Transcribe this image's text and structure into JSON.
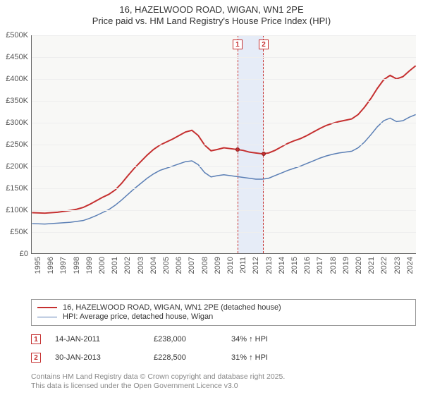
{
  "title": {
    "line1": "16, HAZELWOOD ROAD, WIGAN, WN1 2PE",
    "line2": "Price paid vs. HM Land Registry's House Price Index (HPI)"
  },
  "chart": {
    "type": "line",
    "background_color": "#f8f8f6",
    "ylim": [
      0,
      500000
    ],
    "ytick_step": 50000,
    "ytick_labels": [
      "£0",
      "£50K",
      "£100K",
      "£150K",
      "£200K",
      "£250K",
      "£300K",
      "£350K",
      "£400K",
      "£450K",
      "£500K"
    ],
    "x_start_year": 1995,
    "x_end_year": 2025,
    "xtick_labels": [
      "1995",
      "1996",
      "1997",
      "1998",
      "1999",
      "2000",
      "2001",
      "2002",
      "2003",
      "2004",
      "2005",
      "2006",
      "2007",
      "2008",
      "2009",
      "2010",
      "2011",
      "2012",
      "2013",
      "2014",
      "2015",
      "2016",
      "2017",
      "2018",
      "2019",
      "2020",
      "2021",
      "2022",
      "2023",
      "2024"
    ],
    "highlight_band": {
      "from_year": 2011.04,
      "to_year": 2013.08
    },
    "sale_markers": [
      {
        "label": "1",
        "year": 2011.04,
        "value": 238000
      },
      {
        "label": "2",
        "year": 2013.08,
        "value": 228500
      }
    ],
    "series": [
      {
        "name": "price_paid",
        "color": "#c53030",
        "width": 2,
        "points": [
          [
            1995.0,
            93000
          ],
          [
            1996.0,
            92000
          ],
          [
            1997.0,
            94000
          ],
          [
            1998.0,
            98000
          ],
          [
            1998.5,
            101000
          ],
          [
            1999.0,
            105000
          ],
          [
            1999.5,
            112000
          ],
          [
            2000.0,
            120000
          ],
          [
            2000.5,
            128000
          ],
          [
            2001.0,
            135000
          ],
          [
            2001.5,
            145000
          ],
          [
            2002.0,
            160000
          ],
          [
            2002.5,
            178000
          ],
          [
            2003.0,
            195000
          ],
          [
            2003.5,
            210000
          ],
          [
            2004.0,
            225000
          ],
          [
            2004.5,
            238000
          ],
          [
            2005.0,
            248000
          ],
          [
            2005.5,
            255000
          ],
          [
            2006.0,
            262000
          ],
          [
            2006.5,
            270000
          ],
          [
            2007.0,
            278000
          ],
          [
            2007.5,
            282000
          ],
          [
            2008.0,
            270000
          ],
          [
            2008.5,
            248000
          ],
          [
            2009.0,
            235000
          ],
          [
            2009.5,
            238000
          ],
          [
            2010.0,
            242000
          ],
          [
            2010.5,
            240000
          ],
          [
            2011.0,
            238000
          ],
          [
            2011.5,
            236000
          ],
          [
            2012.0,
            232000
          ],
          [
            2012.5,
            230000
          ],
          [
            2013.0,
            228000
          ],
          [
            2013.5,
            230000
          ],
          [
            2014.0,
            236000
          ],
          [
            2014.5,
            244000
          ],
          [
            2015.0,
            252000
          ],
          [
            2015.5,
            258000
          ],
          [
            2016.0,
            263000
          ],
          [
            2016.5,
            270000
          ],
          [
            2017.0,
            278000
          ],
          [
            2017.5,
            286000
          ],
          [
            2018.0,
            293000
          ],
          [
            2018.5,
            298000
          ],
          [
            2019.0,
            302000
          ],
          [
            2019.5,
            305000
          ],
          [
            2020.0,
            308000
          ],
          [
            2020.5,
            318000
          ],
          [
            2021.0,
            335000
          ],
          [
            2021.5,
            355000
          ],
          [
            2022.0,
            378000
          ],
          [
            2022.5,
            398000
          ],
          [
            2023.0,
            408000
          ],
          [
            2023.5,
            400000
          ],
          [
            2024.0,
            405000
          ],
          [
            2024.5,
            418000
          ],
          [
            2025.0,
            430000
          ]
        ]
      },
      {
        "name": "hpi",
        "color": "#5b7fb5",
        "width": 1.5,
        "points": [
          [
            1995.0,
            68000
          ],
          [
            1996.0,
            67000
          ],
          [
            1997.0,
            69000
          ],
          [
            1998.0,
            71000
          ],
          [
            1999.0,
            75000
          ],
          [
            1999.5,
            80000
          ],
          [
            2000.0,
            86000
          ],
          [
            2000.5,
            93000
          ],
          [
            2001.0,
            100000
          ],
          [
            2001.5,
            110000
          ],
          [
            2002.0,
            122000
          ],
          [
            2002.5,
            135000
          ],
          [
            2003.0,
            148000
          ],
          [
            2003.5,
            160000
          ],
          [
            2004.0,
            172000
          ],
          [
            2004.5,
            182000
          ],
          [
            2005.0,
            190000
          ],
          [
            2005.5,
            195000
          ],
          [
            2006.0,
            200000
          ],
          [
            2006.5,
            205000
          ],
          [
            2007.0,
            210000
          ],
          [
            2007.5,
            212000
          ],
          [
            2008.0,
            203000
          ],
          [
            2008.5,
            185000
          ],
          [
            2009.0,
            175000
          ],
          [
            2009.5,
            178000
          ],
          [
            2010.0,
            180000
          ],
          [
            2010.5,
            178000
          ],
          [
            2011.0,
            176000
          ],
          [
            2011.5,
            174000
          ],
          [
            2012.0,
            172000
          ],
          [
            2012.5,
            170000
          ],
          [
            2013.0,
            170000
          ],
          [
            2013.5,
            172000
          ],
          [
            2014.0,
            178000
          ],
          [
            2014.5,
            184000
          ],
          [
            2015.0,
            190000
          ],
          [
            2015.5,
            195000
          ],
          [
            2016.0,
            200000
          ],
          [
            2016.5,
            206000
          ],
          [
            2017.0,
            212000
          ],
          [
            2017.5,
            218000
          ],
          [
            2018.0,
            223000
          ],
          [
            2018.5,
            227000
          ],
          [
            2019.0,
            230000
          ],
          [
            2019.5,
            232000
          ],
          [
            2020.0,
            234000
          ],
          [
            2020.5,
            242000
          ],
          [
            2021.0,
            255000
          ],
          [
            2021.5,
            272000
          ],
          [
            2022.0,
            290000
          ],
          [
            2022.5,
            304000
          ],
          [
            2023.0,
            310000
          ],
          [
            2023.5,
            302000
          ],
          [
            2024.0,
            304000
          ],
          [
            2024.5,
            312000
          ],
          [
            2025.0,
            318000
          ]
        ]
      }
    ]
  },
  "legend": {
    "items": [
      {
        "color": "#c53030",
        "width": 2,
        "label": "16, HAZELWOOD ROAD, WIGAN, WN1 2PE (detached house)"
      },
      {
        "color": "#5b7fb5",
        "width": 1.5,
        "label": "HPI: Average price, detached house, Wigan"
      }
    ]
  },
  "sales": [
    {
      "marker": "1",
      "date": "14-JAN-2011",
      "price": "£238,000",
      "hpi_note": "34% ↑ HPI"
    },
    {
      "marker": "2",
      "date": "30-JAN-2013",
      "price": "£228,500",
      "hpi_note": "31% ↑ HPI"
    }
  ],
  "attribution": {
    "line1": "Contains HM Land Registry data © Crown copyright and database right 2025.",
    "line2": "This data is licensed under the Open Government Licence v3.0"
  }
}
